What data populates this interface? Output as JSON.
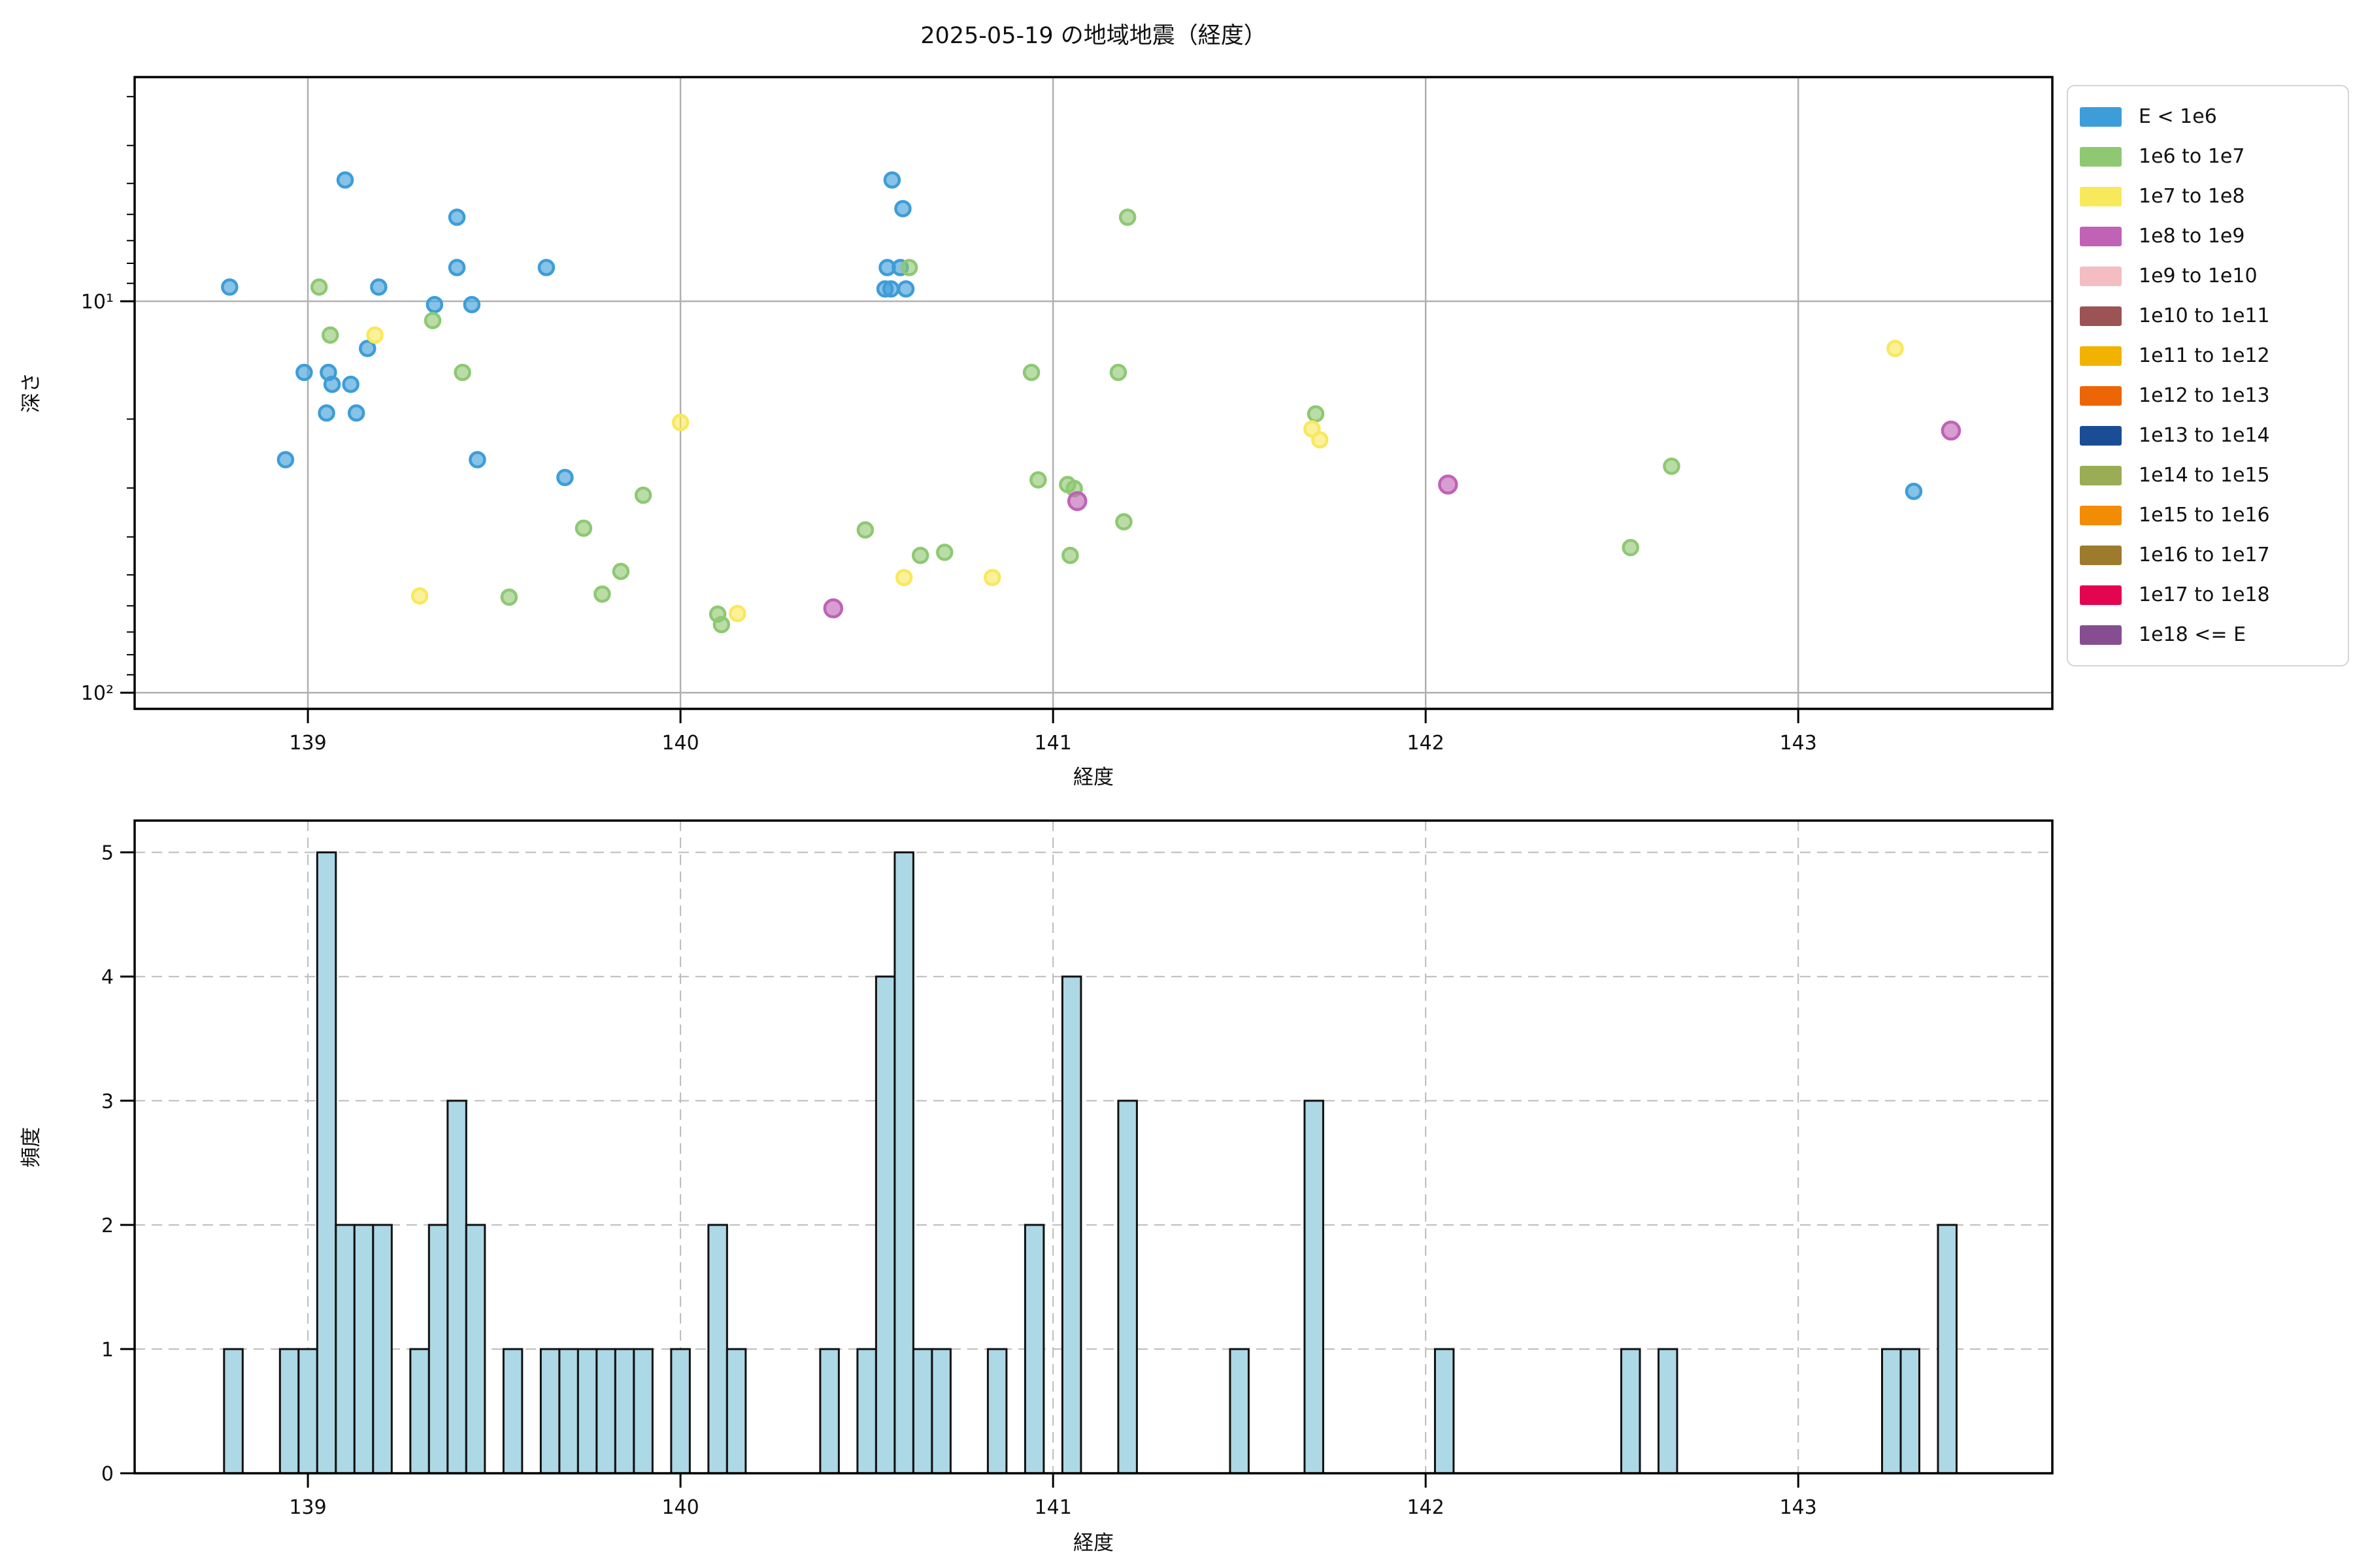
{
  "title": "2025-05-19 の地域地震（経度）",
  "colors": {
    "background": "#ffffff",
    "grid_solid": "#b0b0b0",
    "grid_dashed": "#bbbbbb",
    "spine": "#000000",
    "bar_fill": "#ADD8E6",
    "bar_edge": "#111111",
    "legend_border": "#d4d4d4"
  },
  "legend": {
    "entries": [
      {
        "label": "E < 1e6",
        "color": "#3D9DD8"
      },
      {
        "label": "1e6 to 1e7",
        "color": "#8FC873"
      },
      {
        "label": "1e7 to 1e8",
        "color": "#F8E85C"
      },
      {
        "label": "1e8 to 1e9",
        "color": "#C062B6"
      },
      {
        "label": "1e9 to 1e10",
        "color": "#F4BDC1"
      },
      {
        "label": "1e10 to 1e11",
        "color": "#9C5353"
      },
      {
        "label": "1e11 to 1e12",
        "color": "#F1B300"
      },
      {
        "label": "1e12 to 1e13",
        "color": "#EC6607"
      },
      {
        "label": "1e13 to 1e14",
        "color": "#1B4C96"
      },
      {
        "label": "1e14 to 1e15",
        "color": "#9AAD55"
      },
      {
        "label": "1e15 to 1e16",
        "color": "#F28C05"
      },
      {
        "label": "1e16 to 1e17",
        "color": "#9C7B2D"
      },
      {
        "label": "1e17 to 1e18",
        "color": "#E30550"
      },
      {
        "label": "1e18 <= E",
        "color": "#864E90"
      }
    ]
  },
  "chart_data": [
    {
      "type": "scatter",
      "title": "2025-05-19 の地域地震（経度）",
      "xlabel": "経度",
      "ylabel": "深さ",
      "xlim": [
        138.535,
        143.682
      ],
      "x_ticks": [
        139,
        140,
        141,
        142,
        143
      ],
      "y_axis": {
        "scale": "log",
        "inverted": true,
        "top_value": 2.675,
        "bottom_value": 110,
        "major_ticks": [
          10,
          100
        ],
        "major_tick_labels": [
          "10¹",
          "10²"
        ],
        "minor_ticks": [
          3,
          4,
          5,
          6,
          7,
          8,
          9,
          20,
          30,
          40,
          50,
          60,
          70,
          80,
          90
        ]
      },
      "grid": "solid",
      "legend_position": "upper right outside",
      "series": [
        {
          "name": "E < 1e6",
          "color": "#3D9DD8",
          "marker_radius": 11,
          "points": [
            [
              138.79,
              9.2
            ],
            [
              138.94,
              25.4
            ],
            [
              138.99,
              15.2
            ],
            [
              139.05,
              19.3
            ],
            [
              139.055,
              15.2
            ],
            [
              139.065,
              16.3
            ],
            [
              139.1,
              4.9
            ],
            [
              139.115,
              16.3
            ],
            [
              139.13,
              19.3
            ],
            [
              139.16,
              13.2
            ],
            [
              139.19,
              9.2
            ],
            [
              139.34,
              10.2
            ],
            [
              139.4,
              6.1
            ],
            [
              139.4,
              8.2
            ],
            [
              139.44,
              10.2
            ],
            [
              139.455,
              25.4
            ],
            [
              139.64,
              8.2
            ],
            [
              139.69,
              28.2
            ],
            [
              140.549,
              9.3
            ],
            [
              140.555,
              8.2
            ],
            [
              140.565,
              9.3
            ],
            [
              140.568,
              4.9
            ],
            [
              140.59,
              8.2
            ],
            [
              140.597,
              5.8
            ],
            [
              140.605,
              9.3
            ],
            [
              143.31,
              30.6
            ]
          ]
        },
        {
          "name": "1e6 to 1e7",
          "color": "#8FC873",
          "marker_radius": 11,
          "points": [
            [
              139.03,
              9.2
            ],
            [
              139.06,
              12.2
            ],
            [
              139.335,
              11.2
            ],
            [
              139.415,
              15.2
            ],
            [
              139.54,
              57
            ],
            [
              139.74,
              38
            ],
            [
              139.79,
              56
            ],
            [
              139.84,
              49
            ],
            [
              139.9,
              31.3
            ],
            [
              140.1,
              63
            ],
            [
              140.11,
              67
            ],
            [
              140.496,
              38.4
            ],
            [
              140.614,
              8.2
            ],
            [
              140.644,
              44.6
            ],
            [
              140.709,
              43.8
            ],
            [
              140.942,
              15.2
            ],
            [
              140.96,
              28.6
            ],
            [
              141.039,
              29.4
            ],
            [
              141.046,
              44.6
            ],
            [
              141.057,
              30.1
            ],
            [
              141.175,
              15.2
            ],
            [
              141.19,
              36.6
            ],
            [
              141.2,
              6.1
            ],
            [
              141.705,
              19.4
            ],
            [
              142.55,
              42.6
            ],
            [
              142.66,
              26.4
            ]
          ]
        },
        {
          "name": "1e7 to 1e8",
          "color": "#F8E85C",
          "marker_radius": 11,
          "points": [
            [
              139.18,
              12.2
            ],
            [
              139.3,
              56.6
            ],
            [
              140.0,
              20.4
            ],
            [
              140.153,
              62.8
            ],
            [
              140.6,
              50.8
            ],
            [
              140.837,
              50.8
            ],
            [
              141.695,
              21.2
            ],
            [
              141.716,
              22.6
            ],
            [
              143.26,
              13.2
            ]
          ]
        },
        {
          "name": "1e8 to 1e9",
          "color": "#C062B6",
          "marker_radius": 13,
          "points": [
            [
              140.41,
              60.9
            ],
            [
              141.065,
              32.4
            ],
            [
              142.06,
              29.4
            ],
            [
              143.41,
              21.4
            ]
          ]
        }
      ]
    },
    {
      "type": "histogram",
      "xlabel": "経度",
      "ylabel": "頻度",
      "xlim": [
        138.535,
        143.682
      ],
      "x_ticks": [
        139,
        140,
        141,
        142,
        143
      ],
      "ylim": [
        0,
        5.256
      ],
      "y_ticks": [
        0,
        1,
        2,
        3,
        4,
        5
      ],
      "grid": "dashed",
      "bin_width": 0.05,
      "bars": [
        [
          138.775,
          1
        ],
        [
          138.925,
          1
        ],
        [
          138.975,
          1
        ],
        [
          139.025,
          5
        ],
        [
          139.075,
          2
        ],
        [
          139.125,
          2
        ],
        [
          139.175,
          2
        ],
        [
          139.275,
          1
        ],
        [
          139.325,
          2
        ],
        [
          139.375,
          3
        ],
        [
          139.425,
          2
        ],
        [
          139.525,
          1
        ],
        [
          139.625,
          1
        ],
        [
          139.675,
          1
        ],
        [
          139.725,
          1
        ],
        [
          139.775,
          1
        ],
        [
          139.825,
          1
        ],
        [
          139.875,
          1
        ],
        [
          139.975,
          1
        ],
        [
          140.075,
          2
        ],
        [
          140.125,
          1
        ],
        [
          140.375,
          1
        ],
        [
          140.475,
          1
        ],
        [
          140.525,
          4
        ],
        [
          140.575,
          5
        ],
        [
          140.625,
          1
        ],
        [
          140.675,
          1
        ],
        [
          140.825,
          1
        ],
        [
          140.925,
          2
        ],
        [
          141.025,
          4
        ],
        [
          141.175,
          3
        ],
        [
          141.475,
          1
        ],
        [
          141.675,
          3
        ],
        [
          142.025,
          1
        ],
        [
          142.525,
          1
        ],
        [
          142.625,
          1
        ],
        [
          143.225,
          1
        ],
        [
          143.275,
          1
        ],
        [
          143.375,
          2
        ]
      ]
    }
  ]
}
